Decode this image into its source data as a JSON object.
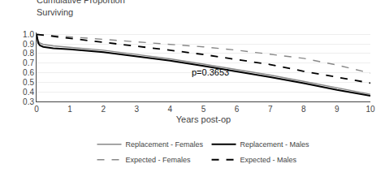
{
  "chart_data": {
    "type": "line",
    "title": "Cumulative Proportion\nSurviving",
    "x_label": "Years post-op",
    "annotations": [
      {
        "text": "p=0.3653",
        "x": 4.6,
        "y": 0.535
      }
    ],
    "series": [
      {
        "name": "Replacement - Females",
        "color": "#888888",
        "line_style": "solid",
        "x": [
          0,
          0.05,
          0.1,
          0.2,
          0.5,
          1,
          2,
          3,
          4,
          5,
          6,
          7,
          8,
          9,
          10
        ],
        "values": [
          1.0,
          0.93,
          0.91,
          0.895,
          0.88,
          0.865,
          0.835,
          0.79,
          0.745,
          0.69,
          0.635,
          0.575,
          0.51,
          0.44,
          0.375
        ]
      },
      {
        "name": "Replacement - Males",
        "color": "#000000",
        "line_style": "solid",
        "x": [
          0,
          0.05,
          0.1,
          0.2,
          0.5,
          1,
          2,
          3,
          4,
          5,
          6,
          7,
          8,
          9,
          10
        ],
        "values": [
          1.0,
          0.91,
          0.885,
          0.87,
          0.855,
          0.845,
          0.815,
          0.77,
          0.725,
          0.67,
          0.615,
          0.555,
          0.49,
          0.42,
          0.36
        ]
      },
      {
        "name": "Expected - Females",
        "color": "#888888",
        "line_style": "dashed",
        "x": [
          0,
          1,
          2,
          3,
          4,
          5,
          6,
          7,
          8,
          9,
          10
        ],
        "values": [
          1.0,
          0.975,
          0.95,
          0.925,
          0.9,
          0.87,
          0.835,
          0.795,
          0.75,
          0.68,
          0.595
        ]
      },
      {
        "name": "Expected - Males",
        "color": "#000000",
        "line_style": "dashed",
        "x": [
          0,
          1,
          2,
          3,
          4,
          5,
          6,
          7,
          8,
          9,
          10
        ],
        "values": [
          1.0,
          0.96,
          0.92,
          0.88,
          0.835,
          0.79,
          0.74,
          0.685,
          0.615,
          0.555,
          0.492
        ]
      }
    ],
    "xlim": [
      0,
      10
    ],
    "ylim": [
      0.3,
      1.02
    ],
    "xticks": [
      0,
      1,
      2,
      3,
      4,
      5,
      6,
      7,
      8,
      9,
      10
    ],
    "yticks": [
      0.3,
      0.4,
      0.5,
      0.6,
      0.7,
      0.8,
      0.9,
      {
        "value": 1.0,
        "label": "1.0"
      }
    ],
    "grid": "y",
    "legend": "bottom"
  }
}
